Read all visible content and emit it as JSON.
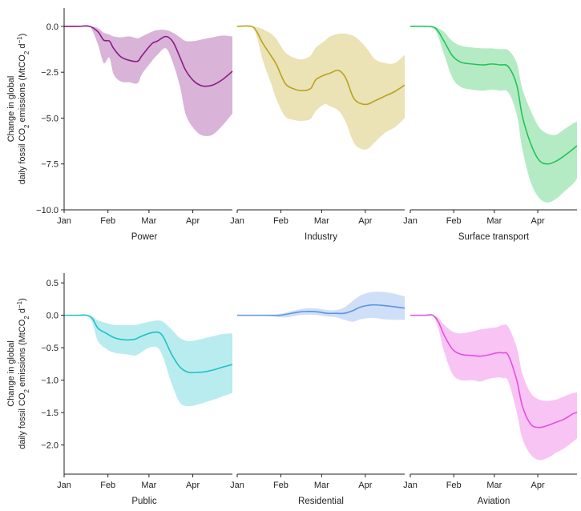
{
  "chart_data": [
    {
      "type": "area",
      "xlabel": "Power",
      "ylabel": "Change in global daily fossil CO2 emissions (MtCO2 d−1)",
      "ylim": [
        -10.0,
        1.0
      ],
      "yticks": [
        "0.0",
        "−2.5",
        "−5.0",
        "−7.5",
        "−10.0"
      ],
      "yticks_values": [
        0.0,
        -2.5,
        -5.0,
        -7.5,
        -10.0
      ],
      "xticks": [
        "Jan",
        "Feb",
        "Mar",
        "Apr"
      ],
      "color": "#8b1a89",
      "fill_color": "#d9b3d8",
      "series": [
        {
          "day": [
            0,
            10,
            18,
            24,
            28,
            32,
            35,
            40,
            46,
            52,
            55,
            62,
            66,
            72,
            77,
            82,
            86,
            92,
            98,
            105,
            112,
            119
          ],
          "value": [
            0,
            0,
            0,
            -0.3,
            -0.75,
            -0.8,
            -1.2,
            -1.65,
            -1.85,
            -1.9,
            -1.6,
            -0.95,
            -0.8,
            -0.55,
            -0.85,
            -1.7,
            -2.4,
            -3.0,
            -3.25,
            -3.2,
            -2.9,
            -2.45
          ],
          "upper": [
            0,
            0,
            0,
            -0.1,
            -0.35,
            -0.45,
            -0.55,
            -0.6,
            -0.55,
            -0.65,
            -0.55,
            -0.3,
            -0.2,
            -0.2,
            -0.35,
            -0.6,
            -0.8,
            -0.8,
            -0.7,
            -0.6,
            -0.5,
            -0.55
          ],
          "lower": [
            0,
            0,
            0,
            -1.0,
            -2.0,
            -1.7,
            -2.6,
            -3.0,
            -3.05,
            -3.1,
            -2.6,
            -1.9,
            -1.55,
            -1.2,
            -2.0,
            -3.3,
            -4.8,
            -5.6,
            -5.95,
            -5.9,
            -5.4,
            -4.75
          ]
        }
      ]
    },
    {
      "type": "area",
      "xlabel": "Industry",
      "ylim": [
        -10.0,
        1.0
      ],
      "xticks": [
        "Jan",
        "Feb",
        "Mar",
        "Apr"
      ],
      "color": "#b8a21e",
      "fill_color": "#ebe2b5",
      "series": [
        {
          "day": [
            0,
            10,
            14,
            18,
            24,
            28,
            34,
            40,
            46,
            52,
            56,
            62,
            66,
            72,
            77,
            82,
            86,
            92,
            98,
            105,
            112,
            119
          ],
          "value": [
            0,
            0,
            -0.3,
            -0.9,
            -1.6,
            -2.1,
            -3.1,
            -3.4,
            -3.5,
            -3.4,
            -2.9,
            -2.65,
            -2.55,
            -2.4,
            -2.8,
            -3.8,
            -4.15,
            -4.25,
            -4.05,
            -3.8,
            -3.55,
            -3.2
          ],
          "upper": [
            0,
            0,
            -0.05,
            -0.15,
            -0.4,
            -0.7,
            -1.4,
            -1.7,
            -1.8,
            -1.6,
            -1.15,
            -0.8,
            -0.55,
            -0.4,
            -0.4,
            -0.5,
            -0.7,
            -1.2,
            -1.8,
            -2.0,
            -2.0,
            -1.55
          ],
          "lower": [
            0,
            0,
            -0.6,
            -1.8,
            -3.1,
            -4.0,
            -4.9,
            -5.1,
            -5.15,
            -5.05,
            -4.6,
            -4.25,
            -4.35,
            -4.6,
            -5.2,
            -6.2,
            -6.6,
            -6.7,
            -6.3,
            -5.8,
            -5.5,
            -5.0
          ]
        }
      ]
    },
    {
      "type": "area",
      "xlabel": "Surface transport",
      "ylim": [
        -10.0,
        1.0
      ],
      "xticks": [
        "Jan",
        "Feb",
        "Mar",
        "Apr"
      ],
      "color": "#22c35a",
      "fill_color": "#b5ebc4",
      "series": [
        {
          "day": [
            0,
            10,
            18,
            24,
            30,
            36,
            44,
            52,
            58,
            64,
            70,
            76,
            80,
            86,
            92,
            98,
            104,
            110,
            116,
            119
          ],
          "value": [
            0,
            0,
            -0.1,
            -0.8,
            -1.6,
            -1.95,
            -2.05,
            -2.1,
            -2.05,
            -2.1,
            -2.2,
            -3.2,
            -4.9,
            -6.4,
            -7.3,
            -7.5,
            -7.35,
            -7.05,
            -6.7,
            -6.5
          ],
          "upper": [
            0,
            0,
            -0.05,
            -0.3,
            -0.8,
            -1.05,
            -1.15,
            -1.2,
            -1.2,
            -1.25,
            -1.3,
            -2.0,
            -3.4,
            -4.6,
            -5.5,
            -5.85,
            -5.9,
            -5.6,
            -5.3,
            -5.2
          ],
          "lower": [
            0,
            0,
            -0.25,
            -1.5,
            -2.8,
            -3.3,
            -3.45,
            -3.5,
            -3.45,
            -3.5,
            -3.6,
            -4.8,
            -6.7,
            -8.5,
            -9.35,
            -9.6,
            -9.4,
            -9.0,
            -8.6,
            -8.3
          ]
        }
      ]
    },
    {
      "type": "area",
      "xlabel": "Public",
      "ylabel": "Change in global daily fossil CO2 emissions (MtCO2 d−1)",
      "ylim": [
        -2.45,
        0.65
      ],
      "yticks": [
        "0.5",
        "0.0",
        "−0.5",
        "−1.0",
        "−1.5",
        "−2.0"
      ],
      "yticks_values": [
        0.5,
        0.0,
        -0.5,
        -1.0,
        -1.5,
        -2.0
      ],
      "xticks": [
        "Jan",
        "Feb",
        "Mar",
        "Apr"
      ],
      "color": "#1ec1c6",
      "fill_color": "#b9ecee",
      "series": [
        {
          "day": [
            0,
            10,
            16,
            20,
            24,
            30,
            36,
            44,
            50,
            54,
            60,
            66,
            70,
            76,
            82,
            88,
            94,
            100,
            106,
            112,
            119
          ],
          "value": [
            0,
            0,
            0,
            -0.05,
            -0.2,
            -0.28,
            -0.35,
            -0.38,
            -0.37,
            -0.33,
            -0.28,
            -0.26,
            -0.33,
            -0.6,
            -0.8,
            -0.88,
            -0.88,
            -0.87,
            -0.84,
            -0.8,
            -0.76
          ],
          "upper": [
            0,
            0,
            0,
            -0.02,
            -0.08,
            -0.12,
            -0.15,
            -0.15,
            -0.15,
            -0.13,
            -0.1,
            -0.08,
            -0.1,
            -0.22,
            -0.35,
            -0.4,
            -0.38,
            -0.35,
            -0.32,
            -0.29,
            -0.28
          ],
          "lower": [
            0,
            0,
            0,
            -0.12,
            -0.4,
            -0.52,
            -0.58,
            -0.6,
            -0.62,
            -0.58,
            -0.5,
            -0.5,
            -0.65,
            -1.05,
            -1.35,
            -1.4,
            -1.38,
            -1.34,
            -1.3,
            -1.25,
            -1.2
          ]
        }
      ]
    },
    {
      "type": "area",
      "xlabel": "Residential",
      "ylim": [
        -2.45,
        0.65
      ],
      "xticks": [
        "Jan",
        "Feb",
        "Mar",
        "Apr"
      ],
      "color": "#5b93e4",
      "fill_color": "#cfdff8",
      "series": [
        {
          "day": [
            0,
            10,
            20,
            30,
            36,
            44,
            52,
            58,
            64,
            70,
            76,
            82,
            88,
            96,
            104,
            112,
            119
          ],
          "value": [
            0,
            0,
            0,
            0,
            0.02,
            0.05,
            0.06,
            0.05,
            0.03,
            0.03,
            0.03,
            0.07,
            0.13,
            0.16,
            0.15,
            0.13,
            0.11
          ],
          "upper": [
            0,
            0,
            0,
            0.02,
            0.05,
            0.09,
            0.11,
            0.1,
            0.08,
            0.08,
            0.12,
            0.22,
            0.31,
            0.36,
            0.36,
            0.33,
            0.29
          ],
          "lower": [
            0,
            0,
            0,
            -0.03,
            -0.03,
            0.0,
            0.01,
            0.0,
            -0.02,
            -0.03,
            -0.07,
            -0.1,
            -0.06,
            -0.04,
            -0.06,
            -0.07,
            -0.07
          ]
        }
      ]
    },
    {
      "type": "area",
      "xlabel": "Aviation",
      "ylim": [
        -2.45,
        0.65
      ],
      "xticks": [
        "Jan",
        "Feb",
        "Mar",
        "Apr"
      ],
      "color": "#e44fe0",
      "fill_color": "#f7c4f4",
      "series": [
        {
          "day": [
            0,
            10,
            16,
            20,
            24,
            30,
            36,
            44,
            50,
            56,
            62,
            66,
            70,
            76,
            80,
            86,
            92,
            98,
            104,
            110,
            116,
            119
          ],
          "value": [
            0,
            0,
            0,
            -0.1,
            -0.3,
            -0.52,
            -0.6,
            -0.62,
            -0.63,
            -0.61,
            -0.58,
            -0.58,
            -0.62,
            -1.0,
            -1.4,
            -1.68,
            -1.73,
            -1.7,
            -1.65,
            -1.6,
            -1.52,
            -1.5
          ],
          "upper": [
            0,
            0,
            0,
            -0.04,
            -0.14,
            -0.25,
            -0.28,
            -0.25,
            -0.22,
            -0.2,
            -0.18,
            -0.15,
            -0.18,
            -0.5,
            -0.9,
            -1.2,
            -1.3,
            -1.32,
            -1.3,
            -1.25,
            -1.2,
            -1.19
          ],
          "lower": [
            0,
            0,
            0,
            -0.2,
            -0.55,
            -0.9,
            -1.0,
            -1.0,
            -1.02,
            -0.98,
            -0.96,
            -0.97,
            -1.02,
            -1.5,
            -1.9,
            -2.15,
            -2.23,
            -2.2,
            -2.12,
            -2.05,
            -1.95,
            -1.9
          ]
        }
      ]
    }
  ]
}
